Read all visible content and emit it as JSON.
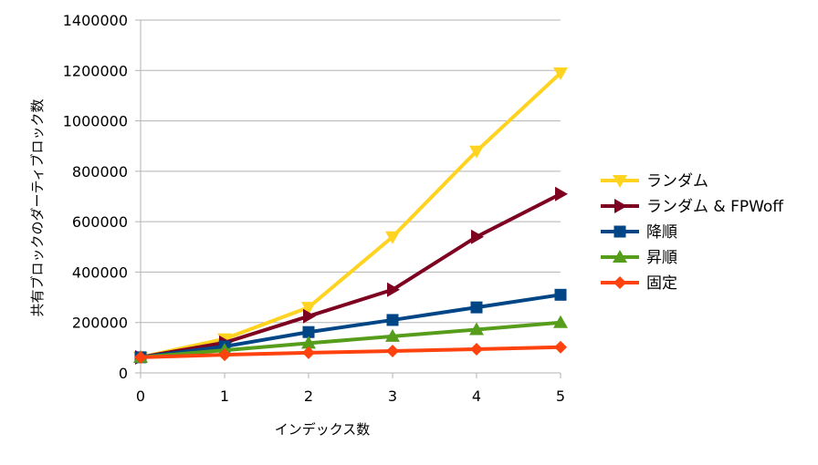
{
  "chart_data": {
    "type": "line",
    "xlabel": "インデックス数",
    "ylabel": "共有ブロックのダーティブロック数",
    "x": [
      0,
      1,
      2,
      3,
      4,
      5
    ],
    "xlim": [
      0,
      5
    ],
    "ylim": [
      0,
      1400000
    ],
    "yticks": [
      0,
      200000,
      400000,
      600000,
      800000,
      1000000,
      1200000,
      1400000
    ],
    "grid": "horizontal",
    "legend_position": "right",
    "series": [
      {
        "name": "ランダム",
        "color": "#ffd320",
        "marker": "triangle-down",
        "values": [
          62000,
          135000,
          260000,
          540000,
          880000,
          1190000
        ]
      },
      {
        "name": "ランダム & FPWoff",
        "color": "#7e0021",
        "marker": "triangle-right",
        "values": [
          62000,
          120000,
          225000,
          330000,
          540000,
          710000
        ]
      },
      {
        "name": "降順",
        "color": "#004586",
        "marker": "square",
        "values": [
          62000,
          105000,
          162000,
          210000,
          260000,
          310000
        ]
      },
      {
        "name": "昇順",
        "color": "#579d1c",
        "marker": "triangle-up",
        "values": [
          62000,
          90000,
          118000,
          145000,
          172000,
          200000
        ]
      },
      {
        "name": "固定",
        "color": "#ff420e",
        "marker": "diamond",
        "values": [
          62000,
          72000,
          80000,
          87000,
          94000,
          102000
        ]
      }
    ]
  }
}
